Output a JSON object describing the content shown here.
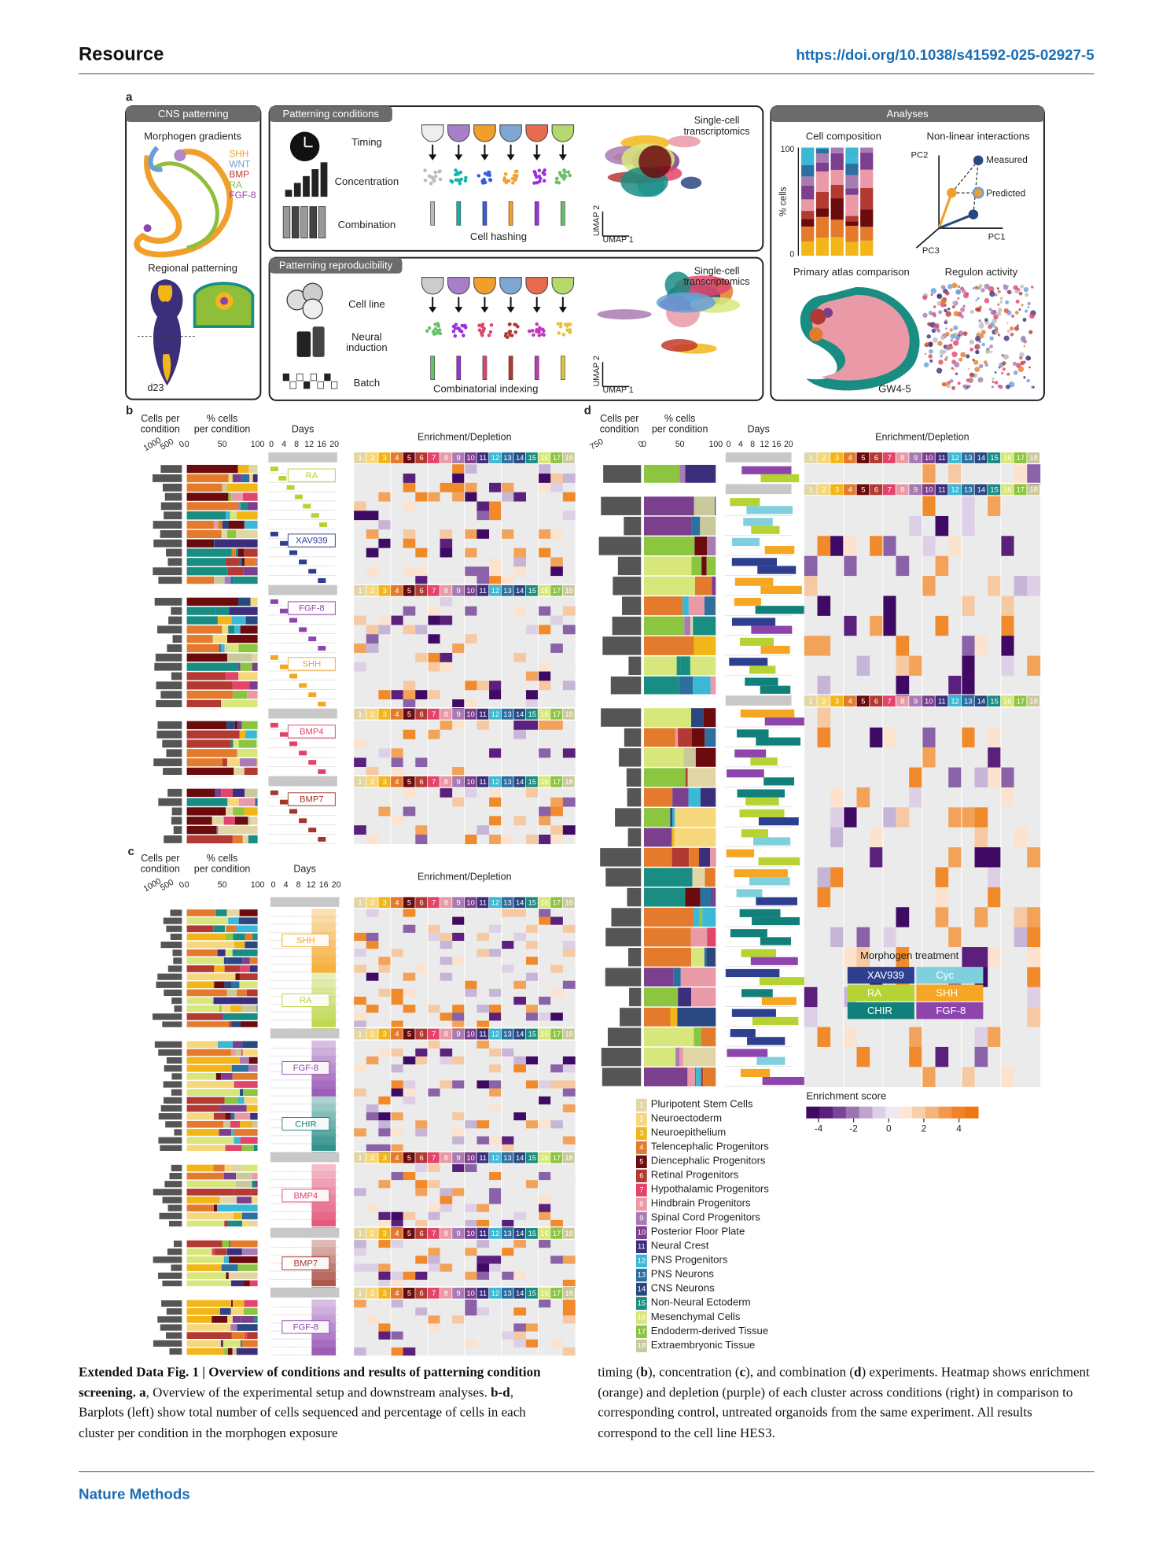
{
  "header": {
    "section": "Resource",
    "doi": "https://doi.org/10.1038/s41592-025-02927-5"
  },
  "panel_a": {
    "letter": "a",
    "cns": {
      "title": "CNS patterning",
      "gradients": "Morphogen gradients",
      "morphogens": [
        {
          "name": "SHH",
          "color": "#f0a02a"
        },
        {
          "name": "WNT",
          "color": "#6b9fd6"
        },
        {
          "name": "BMP",
          "color": "#c0392b"
        },
        {
          "name": "RA",
          "color": "#8fbf3a"
        },
        {
          "name": "FGF-8",
          "color": "#8e44ad"
        }
      ],
      "regional": "Regional patterning",
      "day": "d23"
    },
    "conditions": {
      "title": "Patterning conditions",
      "rows": [
        "Timing",
        "Concentration",
        "Combination"
      ],
      "method": "Cell hashing",
      "readout": [
        "Single-cell",
        "transcriptomics"
      ],
      "umap_x": "UMAP 1",
      "umap_y": "UMAP 2"
    },
    "reproducibility": {
      "title": "Patterning reproducibility",
      "rows": [
        "Cell line",
        [
          "Neural",
          "induction"
        ],
        "Batch"
      ],
      "method": "Combinatorial indexing",
      "readout": [
        "Single-cell",
        "transcriptomics"
      ],
      "umap_x": "UMAP 1",
      "umap_y": "UMAP 2"
    },
    "analyses": {
      "title": "Analyses",
      "composition": "Cell composition",
      "y_label": "% cells",
      "y_ticks": [
        "100",
        "0"
      ],
      "nonlinear": "Non-linear interactions",
      "axes": [
        "PC1",
        "PC2",
        "PC3"
      ],
      "measured": "Measured",
      "predicted": "Predicted",
      "atlas": "Primary atlas comparison",
      "atlas_stage": "GW4-5",
      "regulon": "Regulon activity"
    }
  },
  "panel_b": {
    "letter": "b",
    "cells_header": [
      "Cells per",
      "condition"
    ],
    "cells_ticks": [
      "1000",
      "500",
      "0"
    ],
    "pct_header": [
      "% cells",
      "per condition"
    ],
    "pct_ticks": [
      "0",
      "50",
      "100"
    ],
    "days_header": "Days",
    "days_ticks": [
      "0",
      "4",
      "8",
      "12",
      "16",
      "20"
    ],
    "heatmap_header": "Enrichment/Depletion",
    "treatments": [
      {
        "name": "RA",
        "color": "#b5d334"
      },
      {
        "name": "XAV939",
        "color": "#2e3f8f"
      },
      {
        "name": "FGF-8",
        "color": "#8e44ad"
      },
      {
        "name": "SHH",
        "color": "#f5a623"
      },
      {
        "name": "BMP4",
        "color": "#e2426a"
      },
      {
        "name": "BMP7",
        "color": "#a0392b"
      }
    ]
  },
  "panel_c": {
    "letter": "c",
    "cells_header": [
      "Cells per",
      "condition"
    ],
    "cells_ticks": [
      "1000",
      "500",
      "0"
    ],
    "pct_header": [
      "% cells",
      "per condition"
    ],
    "pct_ticks": [
      "0",
      "50",
      "100"
    ],
    "days_header": "Days",
    "days_ticks": [
      "0",
      "4",
      "8",
      "12",
      "16",
      "20"
    ],
    "heatmap_header": "Enrichment/Depletion",
    "treatments": [
      {
        "name": "SHH",
        "color": "#f5a623"
      },
      {
        "name": "RA",
        "color": "#b5d334"
      },
      {
        "name": "FGF-8",
        "color": "#8e44ad"
      },
      {
        "name": "CHIR",
        "color": "#12807a"
      },
      {
        "name": "BMP4",
        "color": "#e2426a"
      },
      {
        "name": "BMP7",
        "color": "#a0392b"
      },
      {
        "name": "FGF-8",
        "color": "#8e44ad"
      }
    ]
  },
  "panel_d": {
    "letter": "d",
    "cells_header": [
      "Cells per",
      "condition"
    ],
    "cells_ticks": [
      "750",
      "0"
    ],
    "pct_header": [
      "% cells",
      "per condition"
    ],
    "pct_ticks": [
      "0",
      "50",
      "100"
    ],
    "days_header": "Days",
    "days_ticks": [
      "0",
      "4",
      "8",
      "12",
      "16",
      "20"
    ],
    "heatmap_header": "Enrichment/Depletion"
  },
  "clusters": [
    {
      "id": "1",
      "name": "Pluripotent Stem Cells",
      "color": "#e3d6a6"
    },
    {
      "id": "2",
      "name": "Neuroectoderm",
      "color": "#f7d77c"
    },
    {
      "id": "3",
      "name": "Neuroepithelium",
      "color": "#f2b619"
    },
    {
      "id": "4",
      "name": "Telencephalic Progenitors",
      "color": "#e47b2c"
    },
    {
      "id": "5",
      "name": "Diencephalic Progenitors",
      "color": "#6b0b0e"
    },
    {
      "id": "6",
      "name": "Retinal Progenitors",
      "color": "#b33a32"
    },
    {
      "id": "7",
      "name": "Hypothalamic Progenitors",
      "color": "#e2446b"
    },
    {
      "id": "8",
      "name": "Hindbrain Progenitors",
      "color": "#e99aa6"
    },
    {
      "id": "9",
      "name": "Spinal Cord Progenitors",
      "color": "#a97bb3"
    },
    {
      "id": "10",
      "name": "Posterior Floor Plate",
      "color": "#7c3f8e"
    },
    {
      "id": "11",
      "name": "Neural Crest",
      "color": "#3b2f7b"
    },
    {
      "id": "12",
      "name": "PNS Progenitors",
      "color": "#3bb8d6"
    },
    {
      "id": "13",
      "name": "PNS Neurons",
      "color": "#2d6f9f"
    },
    {
      "id": "14",
      "name": "CNS Neurons",
      "color": "#2a4880"
    },
    {
      "id": "15",
      "name": "Non-Neural Ectoderm",
      "color": "#1a8d83"
    },
    {
      "id": "16",
      "name": "Mesenchymal Cells",
      "color": "#d8e77b"
    },
    {
      "id": "17",
      "name": "Endoderm-derived Tissue",
      "color": "#8cc540"
    },
    {
      "id": "18",
      "name": "Extraembryonic Tissue",
      "color": "#c9c99b"
    }
  ],
  "morphogen_treatment": {
    "title": "Morphogen treatment",
    "items": [
      {
        "name": "XAV939",
        "color": "#2e3f8f"
      },
      {
        "name": "Cyc",
        "color": "#7fd0dc"
      },
      {
        "name": "RA",
        "color": "#b5d334"
      },
      {
        "name": "SHH",
        "color": "#f5a623"
      },
      {
        "name": "CHIR",
        "color": "#12807a"
      },
      {
        "name": "FGF-8",
        "color": "#8e44ad"
      }
    ]
  },
  "enrichment_legend": {
    "title": "Enrichment score",
    "lim": [
      -4.7,
      5.1
    ],
    "ticks": [
      -4,
      -2,
      0,
      2,
      4
    ]
  },
  "caption": {
    "left": [
      {
        "text": "Extended Data Fig. 1 | Overview of conditions and results of patterning condition screening.",
        "bold": true
      },
      {
        "text": " a",
        "bold": true
      },
      {
        "text": ", Overview of the experimental setup and downstream analyses. ",
        "bold": false
      },
      {
        "text": "b-d",
        "bold": true
      },
      {
        "text": ", Barplots (left) show total number of cells sequenced and percentage of cells in each cluster per condition in the morphogen exposure",
        "bold": false
      }
    ],
    "right": [
      {
        "text": "timing (",
        "bold": false
      },
      {
        "text": "b",
        "bold": true
      },
      {
        "text": "), concentration (",
        "bold": false
      },
      {
        "text": "c",
        "bold": true
      },
      {
        "text": "), and combination (",
        "bold": false
      },
      {
        "text": "d",
        "bold": true
      },
      {
        "text": ") experiments. Heatmap shows enrichment (orange) and depletion (purple) of each cluster across conditions (right) in comparison to corresponding control, untreated organoids from the same experiment. All results correspond to the cell line HES3.",
        "bold": false
      }
    ]
  },
  "footer": "Nature Methods"
}
